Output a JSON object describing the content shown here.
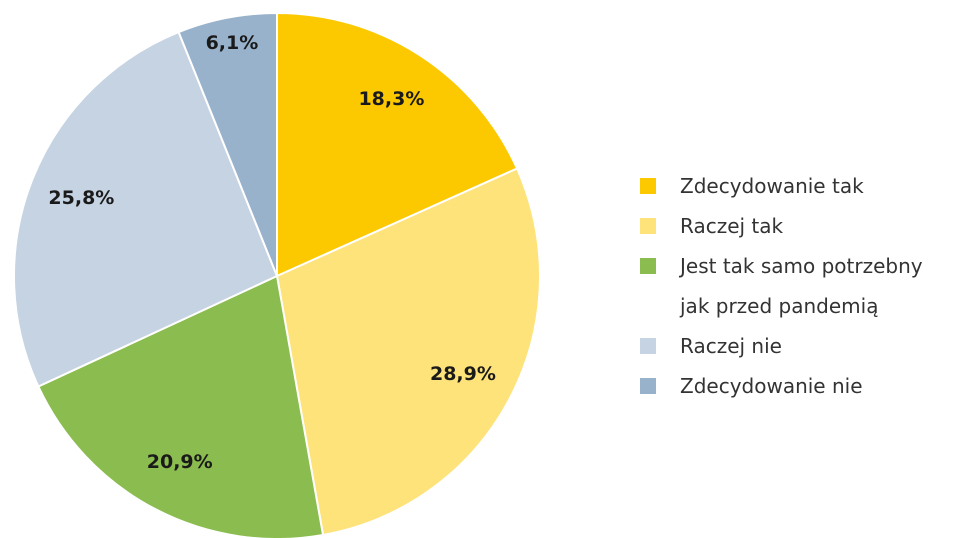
{
  "chart_data": {
    "type": "pie",
    "categories": [
      "Zdecydowanie tak",
      "Raczej tak",
      "Jest tak samo potrzebny jak przed pandemią",
      "Raczej nie",
      "Zdecydowanie nie"
    ],
    "values": [
      18.3,
      28.9,
      20.9,
      25.8,
      6.1
    ],
    "value_labels": [
      "18,3%",
      "28,9%",
      "20,9%",
      "25,8%",
      "6,1%"
    ],
    "colors": [
      "#fcc900",
      "#fee27a",
      "#8bbc4f",
      "#c6d3e3",
      "#98b2cc"
    ],
    "legend": "right"
  }
}
